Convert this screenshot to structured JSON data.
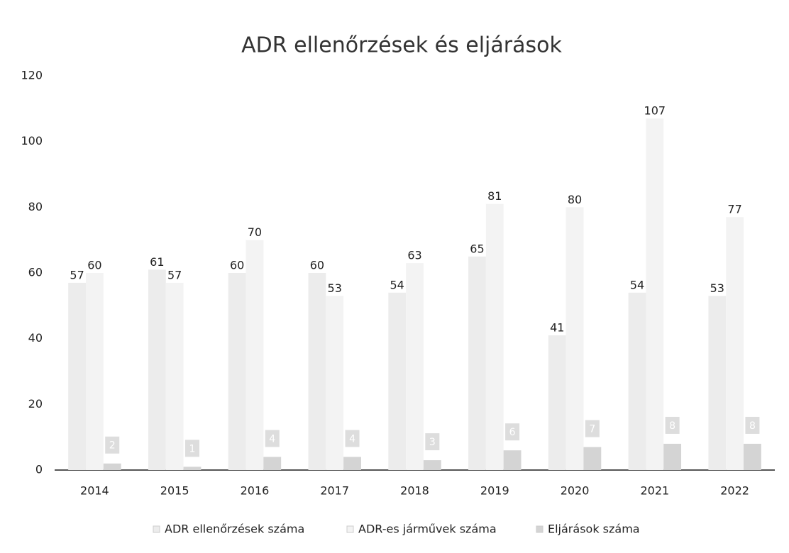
{
  "chart_data": {
    "type": "bar",
    "title": "ADR ellenőrzések és eljárások",
    "categories": [
      "2014",
      "2015",
      "2016",
      "2017",
      "2018",
      "2019",
      "2020",
      "2021",
      "2022"
    ],
    "series": [
      {
        "name": "ADR ellenőrzések száma",
        "color": "#ececec",
        "values": [
          57,
          61,
          60,
          60,
          54,
          65,
          41,
          54,
          53
        ]
      },
      {
        "name": "ADR-es járművek száma",
        "color": "#f3f3f3",
        "values": [
          60,
          57,
          70,
          53,
          63,
          81,
          80,
          107,
          77
        ]
      },
      {
        "name": "Eljárások száma",
        "color": "#d4d4d4",
        "values": [
          2,
          1,
          4,
          4,
          3,
          6,
          7,
          8,
          8
        ]
      }
    ],
    "ylim": [
      0,
      120
    ],
    "yticks": [
      0,
      20,
      40,
      60,
      80,
      100,
      120
    ],
    "grid": false,
    "legend": "bottom"
  }
}
